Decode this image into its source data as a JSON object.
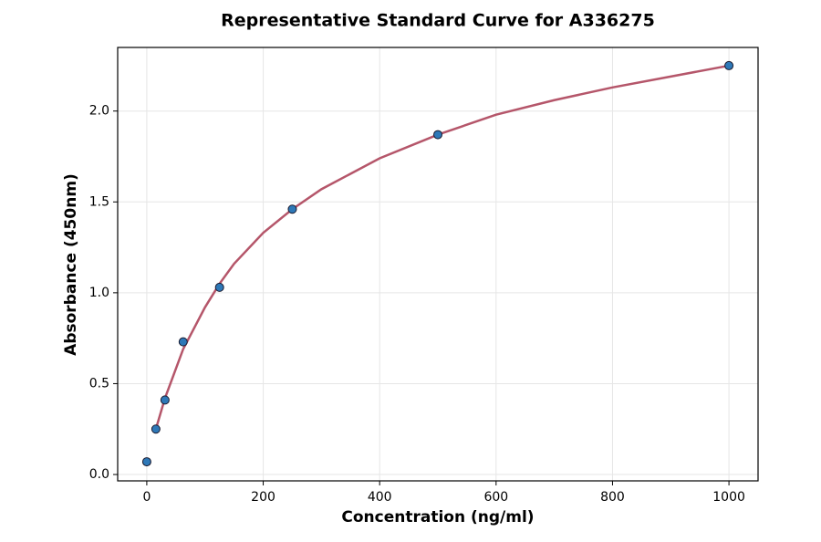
{
  "chart_data": {
    "type": "scatter",
    "title": "Representative Standard Curve for A336275",
    "x_label": "Concentration (ng/ml)",
    "y_label": "Absorbance (450nm)",
    "series": [
      {
        "mode": "line",
        "color": "#b5566a",
        "x": [
          15.6,
          31.25,
          62.5,
          100,
          125,
          150,
          200,
          250,
          300,
          400,
          500,
          600,
          700,
          800,
          900,
          1000
        ],
        "values": [
          0.25,
          0.42,
          0.69,
          0.92,
          1.05,
          1.16,
          1.33,
          1.46,
          1.57,
          1.74,
          1.87,
          1.98,
          2.06,
          2.13,
          2.19,
          2.25
        ]
      },
      {
        "mode": "markers",
        "color": "#2e78b7",
        "x": [
          0,
          15.6,
          31.25,
          62.5,
          125,
          250,
          500,
          1000
        ],
        "values": [
          0.07,
          0.25,
          0.41,
          0.73,
          1.03,
          1.46,
          1.87,
          2.25
        ]
      }
    ],
    "xlim": [
      -50,
      1050
    ],
    "xticks": [
      0,
      200,
      400,
      600,
      800,
      1000
    ],
    "ylim": [
      -0.035,
      2.35
    ],
    "yticks": [
      {
        "value": 0,
        "label": "0.0"
      },
      {
        "value": 0.5,
        "label": "0.5"
      },
      {
        "value": 1,
        "label": "1.0"
      },
      {
        "value": 1.5,
        "label": "1.5"
      },
      {
        "value": 2,
        "label": "2.0"
      }
    ],
    "grid": true
  }
}
